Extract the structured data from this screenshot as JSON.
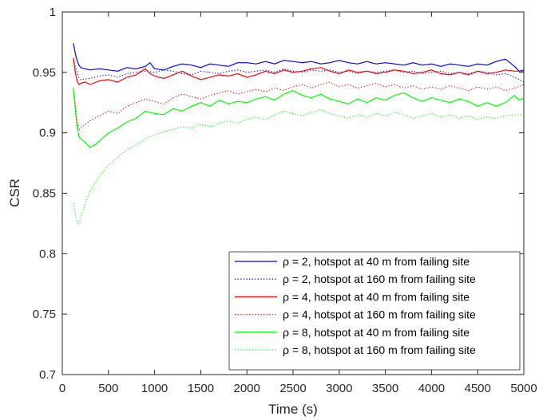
{
  "chart_data": {
    "type": "line",
    "title": "",
    "xlabel": "Time (s)",
    "ylabel": "CSR",
    "xlim": [
      0,
      5000
    ],
    "ylim": [
      0.7,
      1.0
    ],
    "xticks": [
      0,
      500,
      1000,
      1500,
      2000,
      2500,
      3000,
      3500,
      4000,
      4500,
      5000
    ],
    "yticks": [
      0.7,
      0.75,
      0.8,
      0.85,
      0.9,
      0.95,
      1.0
    ],
    "xtick_labels": [
      "0",
      "500",
      "1000",
      "1500",
      "2000",
      "2500",
      "3000",
      "3500",
      "4000",
      "4500",
      "5000"
    ],
    "ytick_labels": [
      "0.7",
      "0.75",
      "0.8",
      "0.85",
      "0.9",
      "0.95",
      "1"
    ],
    "grid": false,
    "legend_position": "bottom-right",
    "series": [
      {
        "name": "ρ = 2, hotspot at 40 m from failing site",
        "color": "#0000ff",
        "style": "solid",
        "x": [
          120,
          140,
          160,
          180,
          200,
          250,
          300,
          400,
          500,
          600,
          700,
          800,
          900,
          950,
          1000,
          1100,
          1200,
          1300,
          1400,
          1500,
          1600,
          1700,
          1800,
          1900,
          2000,
          2100,
          2200,
          2300,
          2400,
          2500,
          2600,
          2700,
          2800,
          2900,
          3000,
          3100,
          3200,
          3300,
          3400,
          3500,
          3600,
          3700,
          3800,
          3900,
          4000,
          4100,
          4200,
          4300,
          4400,
          4500,
          4600,
          4700,
          4800,
          4850,
          4900,
          4950,
          5000
        ],
        "y": [
          0.974,
          0.966,
          0.96,
          0.956,
          0.954,
          0.953,
          0.952,
          0.953,
          0.952,
          0.951,
          0.954,
          0.953,
          0.955,
          0.958,
          0.953,
          0.952,
          0.955,
          0.957,
          0.956,
          0.954,
          0.957,
          0.956,
          0.955,
          0.958,
          0.958,
          0.957,
          0.959,
          0.957,
          0.96,
          0.959,
          0.958,
          0.959,
          0.957,
          0.958,
          0.96,
          0.958,
          0.957,
          0.959,
          0.957,
          0.958,
          0.957,
          0.956,
          0.958,
          0.956,
          0.957,
          0.955,
          0.957,
          0.956,
          0.955,
          0.957,
          0.956,
          0.959,
          0.961,
          0.958,
          0.955,
          0.951,
          0.952
        ]
      },
      {
        "name": "ρ = 2, hotspot at 160 m from failing site",
        "color": "#0000ff",
        "style": "dotted",
        "x": [
          120,
          140,
          160,
          180,
          200,
          300,
          400,
          500,
          600,
          700,
          800,
          900,
          1000,
          1100,
          1200,
          1300,
          1400,
          1500,
          1600,
          1700,
          1800,
          1900,
          2000,
          2100,
          2200,
          2300,
          2400,
          2500,
          2600,
          2700,
          2800,
          2900,
          3000,
          3100,
          3200,
          3300,
          3400,
          3500,
          3600,
          3700,
          3800,
          3900,
          4000,
          4100,
          4200,
          4300,
          4400,
          4500,
          4600,
          4700,
          4800,
          4900,
          4950,
          5000
        ],
        "y": [
          0.96,
          0.955,
          0.95,
          0.946,
          0.944,
          0.945,
          0.947,
          0.948,
          0.946,
          0.949,
          0.95,
          0.951,
          0.95,
          0.952,
          0.951,
          0.949,
          0.948,
          0.951,
          0.95,
          0.949,
          0.951,
          0.952,
          0.95,
          0.951,
          0.952,
          0.95,
          0.953,
          0.951,
          0.95,
          0.952,
          0.951,
          0.952,
          0.95,
          0.951,
          0.949,
          0.951,
          0.95,
          0.951,
          0.952,
          0.95,
          0.951,
          0.949,
          0.95,
          0.951,
          0.949,
          0.95,
          0.949,
          0.951,
          0.95,
          0.948,
          0.949,
          0.946,
          0.944,
          0.942
        ]
      },
      {
        "name": "ρ = 4, hotspot at 40 m from failing site",
        "color": "#ff0000",
        "style": "solid",
        "x": [
          120,
          140,
          160,
          180,
          200,
          250,
          300,
          400,
          500,
          600,
          700,
          800,
          900,
          950,
          1000,
          1100,
          1200,
          1300,
          1400,
          1500,
          1600,
          1700,
          1800,
          1900,
          2000,
          2100,
          2200,
          2300,
          2400,
          2500,
          2600,
          2700,
          2800,
          2900,
          3000,
          3100,
          3200,
          3300,
          3400,
          3500,
          3600,
          3700,
          3800,
          3900,
          4000,
          4100,
          4200,
          4300,
          4400,
          4500,
          4600,
          4700,
          4800,
          4900,
          5000
        ],
        "y": [
          0.962,
          0.95,
          0.943,
          0.94,
          0.941,
          0.942,
          0.94,
          0.943,
          0.944,
          0.942,
          0.946,
          0.948,
          0.953,
          0.949,
          0.947,
          0.945,
          0.948,
          0.951,
          0.947,
          0.944,
          0.946,
          0.948,
          0.947,
          0.949,
          0.946,
          0.948,
          0.951,
          0.949,
          0.952,
          0.95,
          0.951,
          0.953,
          0.954,
          0.951,
          0.949,
          0.952,
          0.95,
          0.951,
          0.949,
          0.95,
          0.952,
          0.951,
          0.949,
          0.95,
          0.952,
          0.949,
          0.948,
          0.95,
          0.948,
          0.951,
          0.949,
          0.95,
          0.952,
          0.951,
          0.951
        ]
      },
      {
        "name": "ρ = 4, hotspot at 160 m from failing site",
        "color": "#ff0000",
        "style": "dotted",
        "x": [
          120,
          140,
          160,
          180,
          200,
          250,
          300,
          400,
          500,
          600,
          700,
          800,
          900,
          1000,
          1100,
          1200,
          1300,
          1400,
          1500,
          1600,
          1700,
          1800,
          1900,
          2000,
          2100,
          2200,
          2300,
          2400,
          2500,
          2600,
          2700,
          2800,
          2900,
          3000,
          3100,
          3200,
          3300,
          3400,
          3500,
          3600,
          3700,
          3800,
          3900,
          4000,
          4100,
          4200,
          4300,
          4400,
          4500,
          4600,
          4700,
          4800,
          4900,
          5000
        ],
        "y": [
          0.937,
          0.925,
          0.91,
          0.902,
          0.904,
          0.907,
          0.91,
          0.914,
          0.918,
          0.916,
          0.922,
          0.925,
          0.928,
          0.926,
          0.924,
          0.929,
          0.932,
          0.93,
          0.928,
          0.931,
          0.933,
          0.935,
          0.932,
          0.934,
          0.936,
          0.934,
          0.937,
          0.935,
          0.938,
          0.94,
          0.937,
          0.94,
          0.942,
          0.938,
          0.94,
          0.937,
          0.939,
          0.941,
          0.938,
          0.94,
          0.937,
          0.939,
          0.936,
          0.938,
          0.936,
          0.939,
          0.937,
          0.935,
          0.938,
          0.936,
          0.938,
          0.935,
          0.937,
          0.94
        ]
      },
      {
        "name": "ρ = 8, hotspot at 40 m from failing site",
        "color": "#00ff00",
        "style": "solid",
        "x": [
          120,
          140,
          160,
          180,
          200,
          250,
          300,
          350,
          400,
          500,
          600,
          700,
          800,
          900,
          1000,
          1100,
          1200,
          1300,
          1400,
          1500,
          1600,
          1700,
          1800,
          1900,
          2000,
          2100,
          2200,
          2300,
          2400,
          2500,
          2600,
          2700,
          2800,
          2900,
          3000,
          3100,
          3200,
          3300,
          3400,
          3500,
          3600,
          3700,
          3800,
          3900,
          4000,
          4100,
          4200,
          4300,
          4400,
          4500,
          4600,
          4700,
          4800,
          4900,
          4950,
          5000
        ],
        "y": [
          0.936,
          0.92,
          0.905,
          0.897,
          0.895,
          0.892,
          0.888,
          0.89,
          0.893,
          0.9,
          0.904,
          0.909,
          0.912,
          0.918,
          0.916,
          0.915,
          0.92,
          0.918,
          0.922,
          0.925,
          0.922,
          0.927,
          0.924,
          0.926,
          0.925,
          0.928,
          0.93,
          0.927,
          0.932,
          0.935,
          0.931,
          0.929,
          0.932,
          0.928,
          0.926,
          0.924,
          0.928,
          0.925,
          0.929,
          0.927,
          0.931,
          0.933,
          0.929,
          0.926,
          0.929,
          0.927,
          0.925,
          0.928,
          0.926,
          0.922,
          0.925,
          0.922,
          0.925,
          0.931,
          0.927,
          0.929
        ]
      },
      {
        "name": "ρ = 8, hotspot at 160 m from failing site",
        "color": "#00ff00",
        "style": "dotted",
        "x": [
          120,
          140,
          160,
          180,
          200,
          250,
          300,
          350,
          400,
          500,
          600,
          700,
          800,
          900,
          1000,
          1100,
          1200,
          1300,
          1400,
          1500,
          1600,
          1700,
          1800,
          1900,
          2000,
          2100,
          2200,
          2300,
          2400,
          2500,
          2600,
          2700,
          2800,
          2900,
          3000,
          3100,
          3200,
          3300,
          3400,
          3500,
          3600,
          3700,
          3800,
          3900,
          4000,
          4100,
          4200,
          4300,
          4400,
          4500,
          4600,
          4700,
          4800,
          4900,
          5000
        ],
        "y": [
          0.842,
          0.833,
          0.826,
          0.824,
          0.83,
          0.842,
          0.852,
          0.858,
          0.864,
          0.873,
          0.88,
          0.886,
          0.89,
          0.895,
          0.898,
          0.901,
          0.903,
          0.905,
          0.904,
          0.907,
          0.905,
          0.908,
          0.91,
          0.908,
          0.911,
          0.913,
          0.911,
          0.915,
          0.918,
          0.916,
          0.914,
          0.917,
          0.919,
          0.916,
          0.914,
          0.912,
          0.915,
          0.913,
          0.916,
          0.914,
          0.917,
          0.915,
          0.912,
          0.914,
          0.916,
          0.913,
          0.915,
          0.912,
          0.914,
          0.911,
          0.913,
          0.912,
          0.914,
          0.915,
          0.915
        ]
      }
    ]
  }
}
